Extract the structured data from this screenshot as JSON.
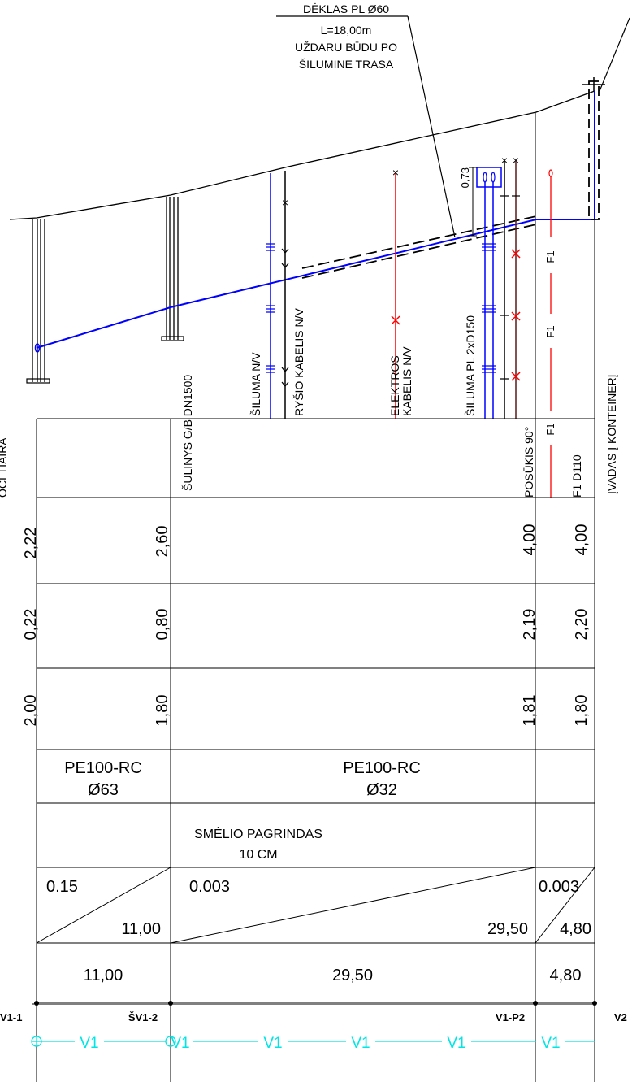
{
  "callout": {
    "line1": "DĖKLAS PL Ø60",
    "line2": "L=18,00m",
    "line3": "UŽDARU BŪDU PO",
    "line4": "ŠILUMINE TRASA"
  },
  "dimension_label": "0,73",
  "utilities": {
    "well": "ŠULINYS G/B DN1500",
    "heat_nv": "ŠILUMA N/V",
    "comm_cable": "RYŠIO KABELIS N/V",
    "elec_line1": "ELEKTROS",
    "elec_line2": "KABELIS N/V",
    "heat_pl": "ŠILUMA PL 2xD150",
    "turn": "POSŪKIS 90°",
    "f1_d110": "F1 D110",
    "entry": "ĮVADAS Į KONTEINERĮ",
    "f1_tag": "F1",
    "left_cut": "OCI TIAIRA"
  },
  "rows": {
    "row1": [
      "2,22",
      "2,60",
      "4,00",
      "4,00"
    ],
    "row2": [
      "0,22",
      "0,80",
      "2,19",
      "2,20"
    ],
    "row3": [
      "2,00",
      "1,80",
      "1,81",
      "1,80"
    ]
  },
  "materials": {
    "seg1_line1": "PE100-RC",
    "seg1_line2": "Ø63",
    "seg2_line1": "PE100-RC",
    "seg2_line2": "Ø32"
  },
  "base": {
    "line1": "SMĖLIO PAGRINDAS",
    "line2": "10 CM"
  },
  "slopes": {
    "seg1_slope": "0.15",
    "seg1_len": "11,00",
    "seg2_slope": "0.003",
    "seg2_len": "29,50",
    "seg3_slope": "0.003",
    "seg3_len": "4,80"
  },
  "lengths": [
    "11,00",
    "29,50",
    "4,80"
  ],
  "nodes": [
    "V1-1",
    "ŠV1-2",
    "V1-P2",
    "V2"
  ],
  "line_tag": "V1",
  "colors": {
    "water": "#0000ff",
    "electric": "#ff0000",
    "plan": "#00e5e5",
    "dark_cable": "#5a1a1a"
  }
}
